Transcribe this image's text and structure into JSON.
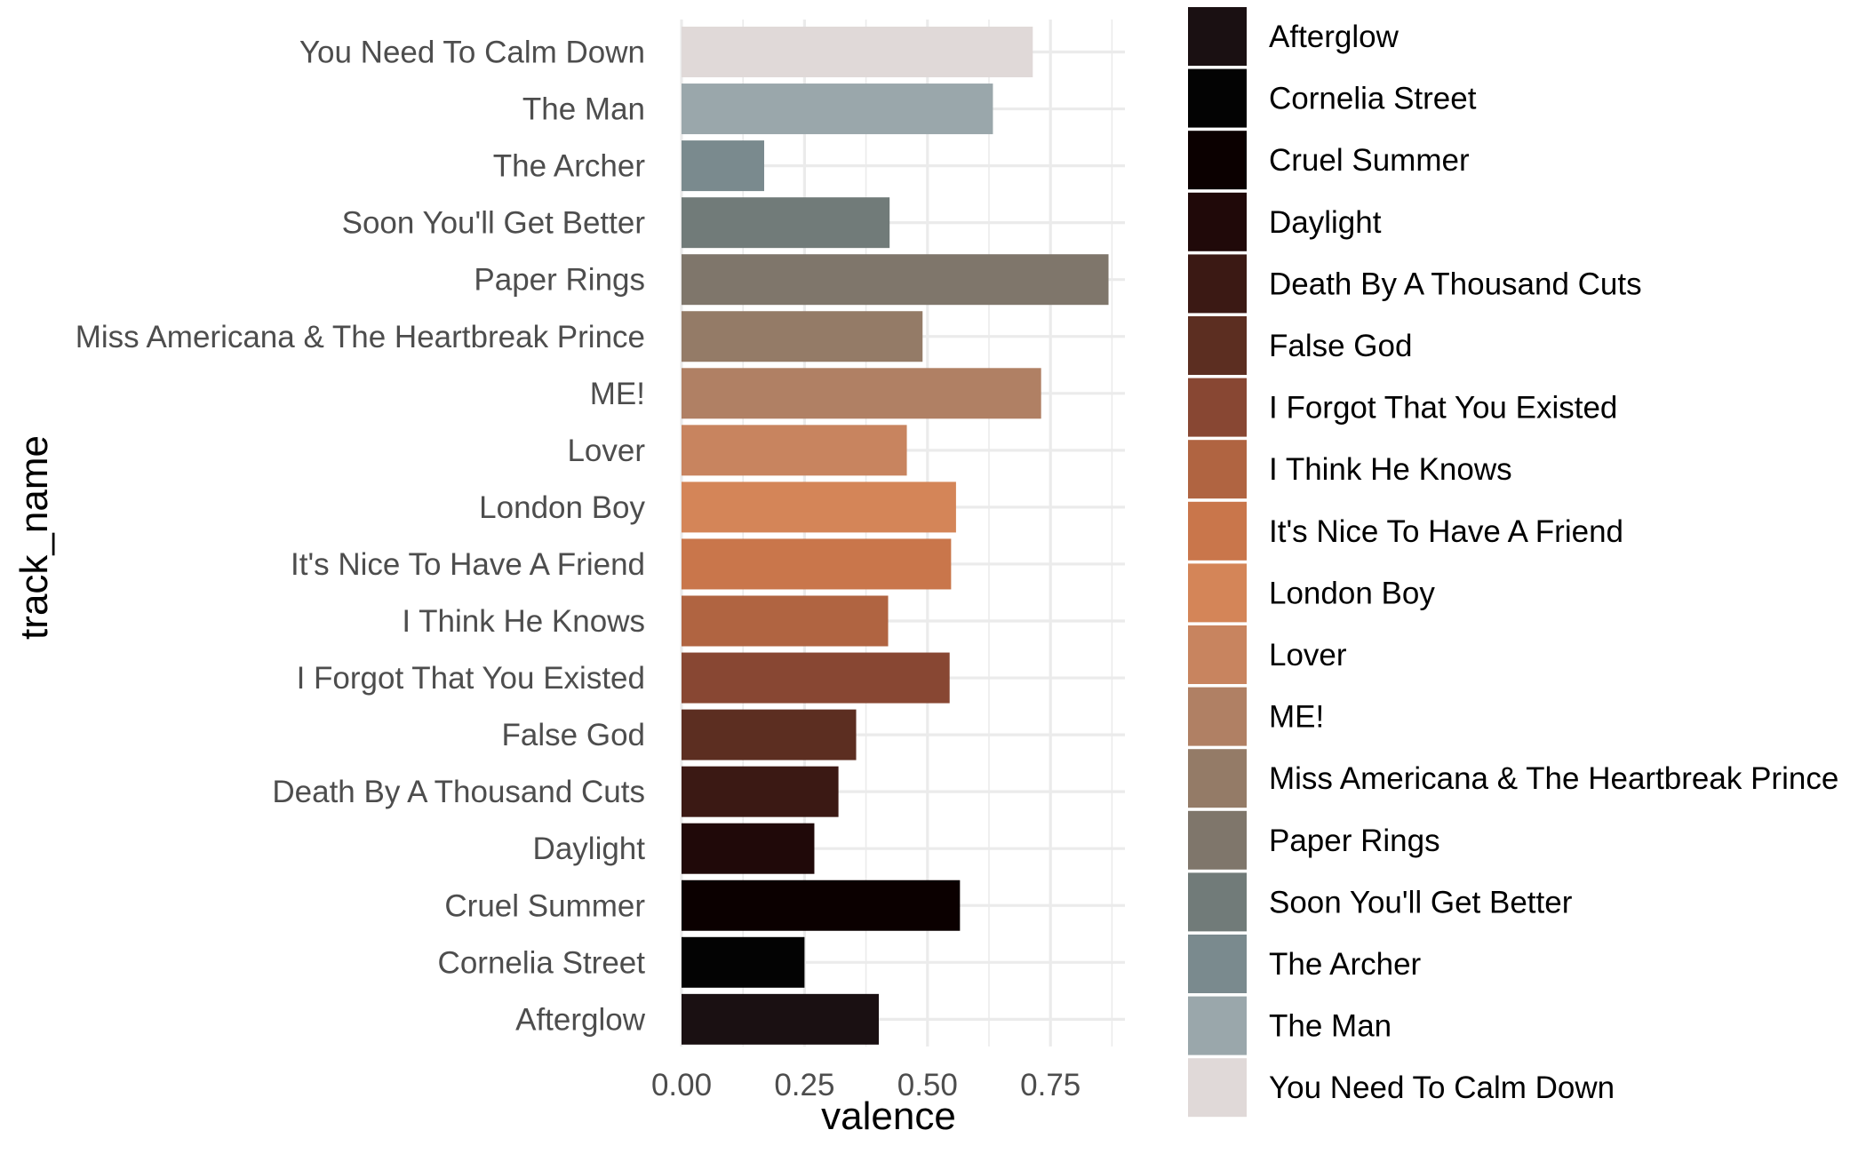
{
  "chart_data": {
    "type": "bar",
    "orientation": "horizontal",
    "xlabel": "valence",
    "ylabel": "track_name",
    "xlim": [
      0,
      0.9
    ],
    "x_ticks": [
      "0.00",
      "0.25",
      "0.50",
      "0.75"
    ],
    "x_tick_values": [
      0,
      0.25,
      0.5,
      0.75
    ],
    "grid": true,
    "legend_position": "right",
    "categories": [
      "Afterglow",
      "Cornelia Street",
      "Cruel Summer",
      "Daylight",
      "Death By A Thousand Cuts",
      "False God",
      "I Forgot That You Existed",
      "I Think He Knows",
      "It's Nice To Have A Friend",
      "London Boy",
      "Lover",
      "ME!",
      "Miss Americana & The Heartbreak Prince",
      "Paper Rings",
      "Soon You'll Get Better",
      "The Archer",
      "The Man",
      "You Need To Calm Down"
    ],
    "values": [
      0.401,
      0.25,
      0.566,
      0.27,
      0.319,
      0.355,
      0.545,
      0.42,
      0.548,
      0.558,
      0.458,
      0.731,
      0.49,
      0.868,
      0.423,
      0.168,
      0.633,
      0.714
    ],
    "colors": [
      "#1a1012",
      "#030303",
      "#0b0000",
      "#200909",
      "#3b1914",
      "#5c2e21",
      "#884733",
      "#b06441",
      "#c9764b",
      "#d48558",
      "#c8845f",
      "#b08064",
      "#947b67",
      "#7f766b",
      "#717b79",
      "#7a8a8e",
      "#9aa7ab",
      "#e0d9d8"
    ]
  }
}
